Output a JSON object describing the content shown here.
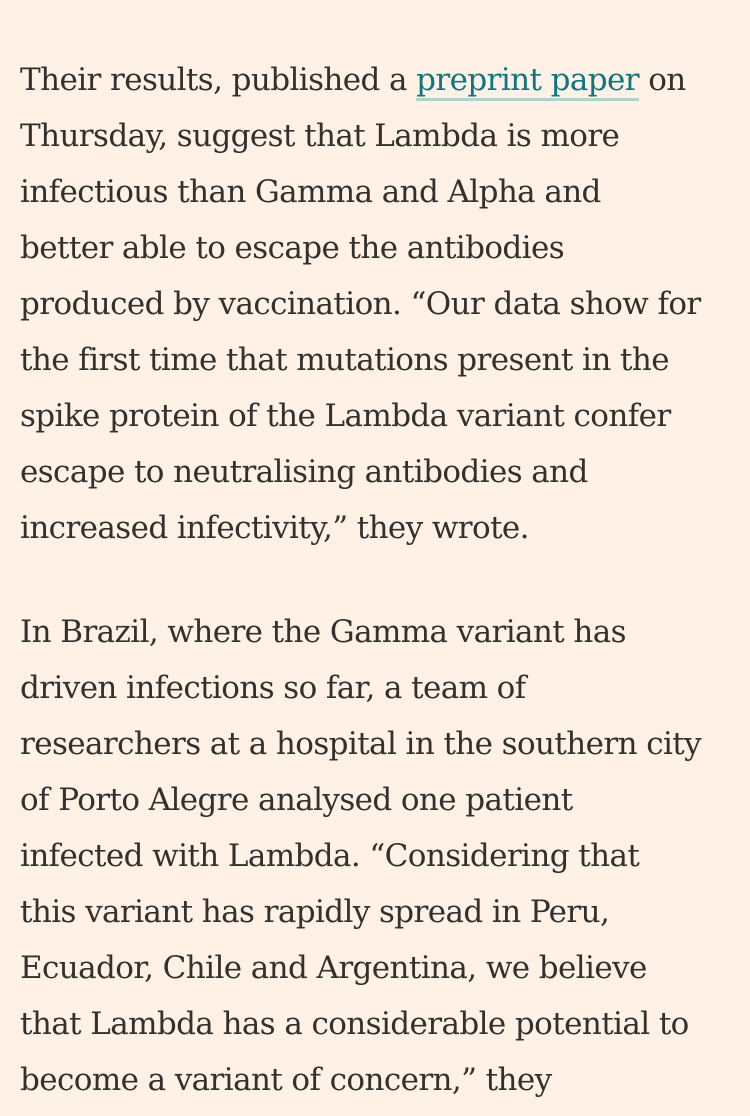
{
  "article": {
    "paragraph_1": {
      "line_1_before": "Their results, published a ",
      "line_1_link": "preprint paper",
      "line_1_after": " on",
      "lines": [
        "Thursday, suggest that Lambda is more",
        "infectious than Gamma and Alpha and",
        "better able to escape the antibodies",
        "produced by vaccination. “Our data show for",
        "the first time that mutations present in the",
        "spike protein of the Lambda variant confer",
        "escape to neutralising antibodies and",
        "increased infectivity,” they wrote."
      ]
    },
    "paragraph_2": {
      "lines": [
        "In Brazil, where the Gamma variant has",
        "driven infections so far, a team of",
        "researchers at a hospital in the southern city",
        "of Porto Alegre analysed one patient",
        "infected with Lambda. “Considering that",
        "this variant has rapidly spread in Peru,",
        "Ecuador, Chile and Argentina, we believe",
        "that Lambda has a considerable potential to",
        "become a variant of concern,” they"
      ]
    },
    "link_color": "#0d7680",
    "text_color": "#33302e",
    "background_color": "#fff1e5"
  }
}
